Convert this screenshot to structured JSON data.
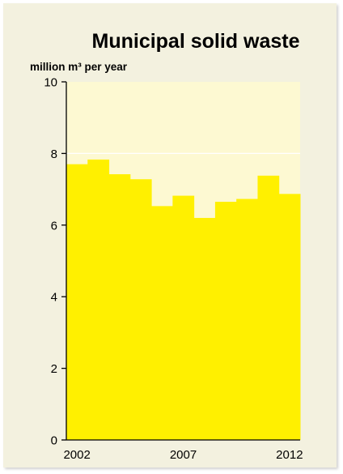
{
  "chart_data": {
    "type": "bar",
    "title": "Municipal solid waste",
    "ylabel": "million m³ per year",
    "xlabel": "",
    "categories": [
      "2002",
      "2003",
      "2004",
      "2005",
      "2006",
      "2007",
      "2008",
      "2009",
      "2010",
      "2011",
      "2012"
    ],
    "values": [
      7.7,
      7.83,
      7.42,
      7.28,
      6.53,
      6.82,
      6.2,
      6.65,
      6.73,
      7.38,
      6.87
    ],
    "x_tick_labels": [
      "2002",
      "2007",
      "2012"
    ],
    "yticks": [
      0,
      2,
      4,
      6,
      8,
      10
    ],
    "ylim": [
      0,
      10
    ],
    "grid": true,
    "colors": {
      "bar": "#fff000",
      "plot_background": "#fdf9d2",
      "panel_background": "#f3f1df",
      "gridline": "#ffffff",
      "axis": "#000000"
    }
  }
}
